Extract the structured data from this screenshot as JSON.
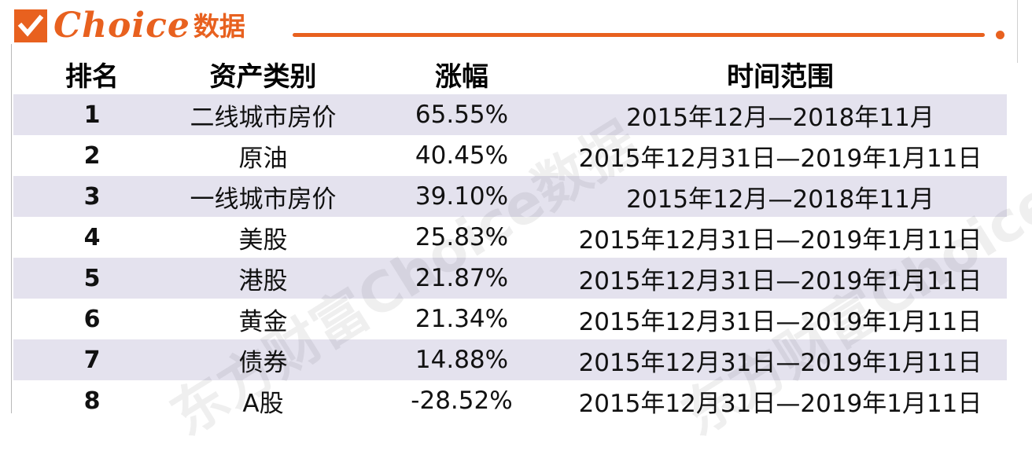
{
  "brand": {
    "logo_text": "Choice",
    "logo_cn": "数据",
    "accent_color": "#e8611f",
    "check_icon": "checkmark-icon"
  },
  "table": {
    "columns": [
      "排名",
      "资产类别",
      "涨幅",
      "时间范围"
    ],
    "rows": [
      {
        "rank": "1",
        "asset": "二线城市房价",
        "gain": "65.55%",
        "range": "2015年12月—2018年11月"
      },
      {
        "rank": "2",
        "asset": "原油",
        "gain": "40.45%",
        "range": "2015年12月31日—2019年1月11日"
      },
      {
        "rank": "3",
        "asset": "一线城市房价",
        "gain": "39.10%",
        "range": "2015年12月—2018年11月"
      },
      {
        "rank": "4",
        "asset": "美股",
        "gain": "25.83%",
        "range": "2015年12月31日—2019年1月11日"
      },
      {
        "rank": "5",
        "asset": "港股",
        "gain": "21.87%",
        "range": "2015年12月31日—2019年1月11日"
      },
      {
        "rank": "6",
        "asset": "黄金",
        "gain": "21.34%",
        "range": "2015年12月31日—2019年1月11日"
      },
      {
        "rank": "7",
        "asset": "债券",
        "gain": "14.88%",
        "range": "2015年12月31日—2019年1月11日"
      },
      {
        "rank": "8",
        "asset": "A股",
        "gain": "-28.52%",
        "range": "2015年12月31日—2019年1月11日"
      }
    ],
    "shaded_color": "#e4e2ee"
  }
}
